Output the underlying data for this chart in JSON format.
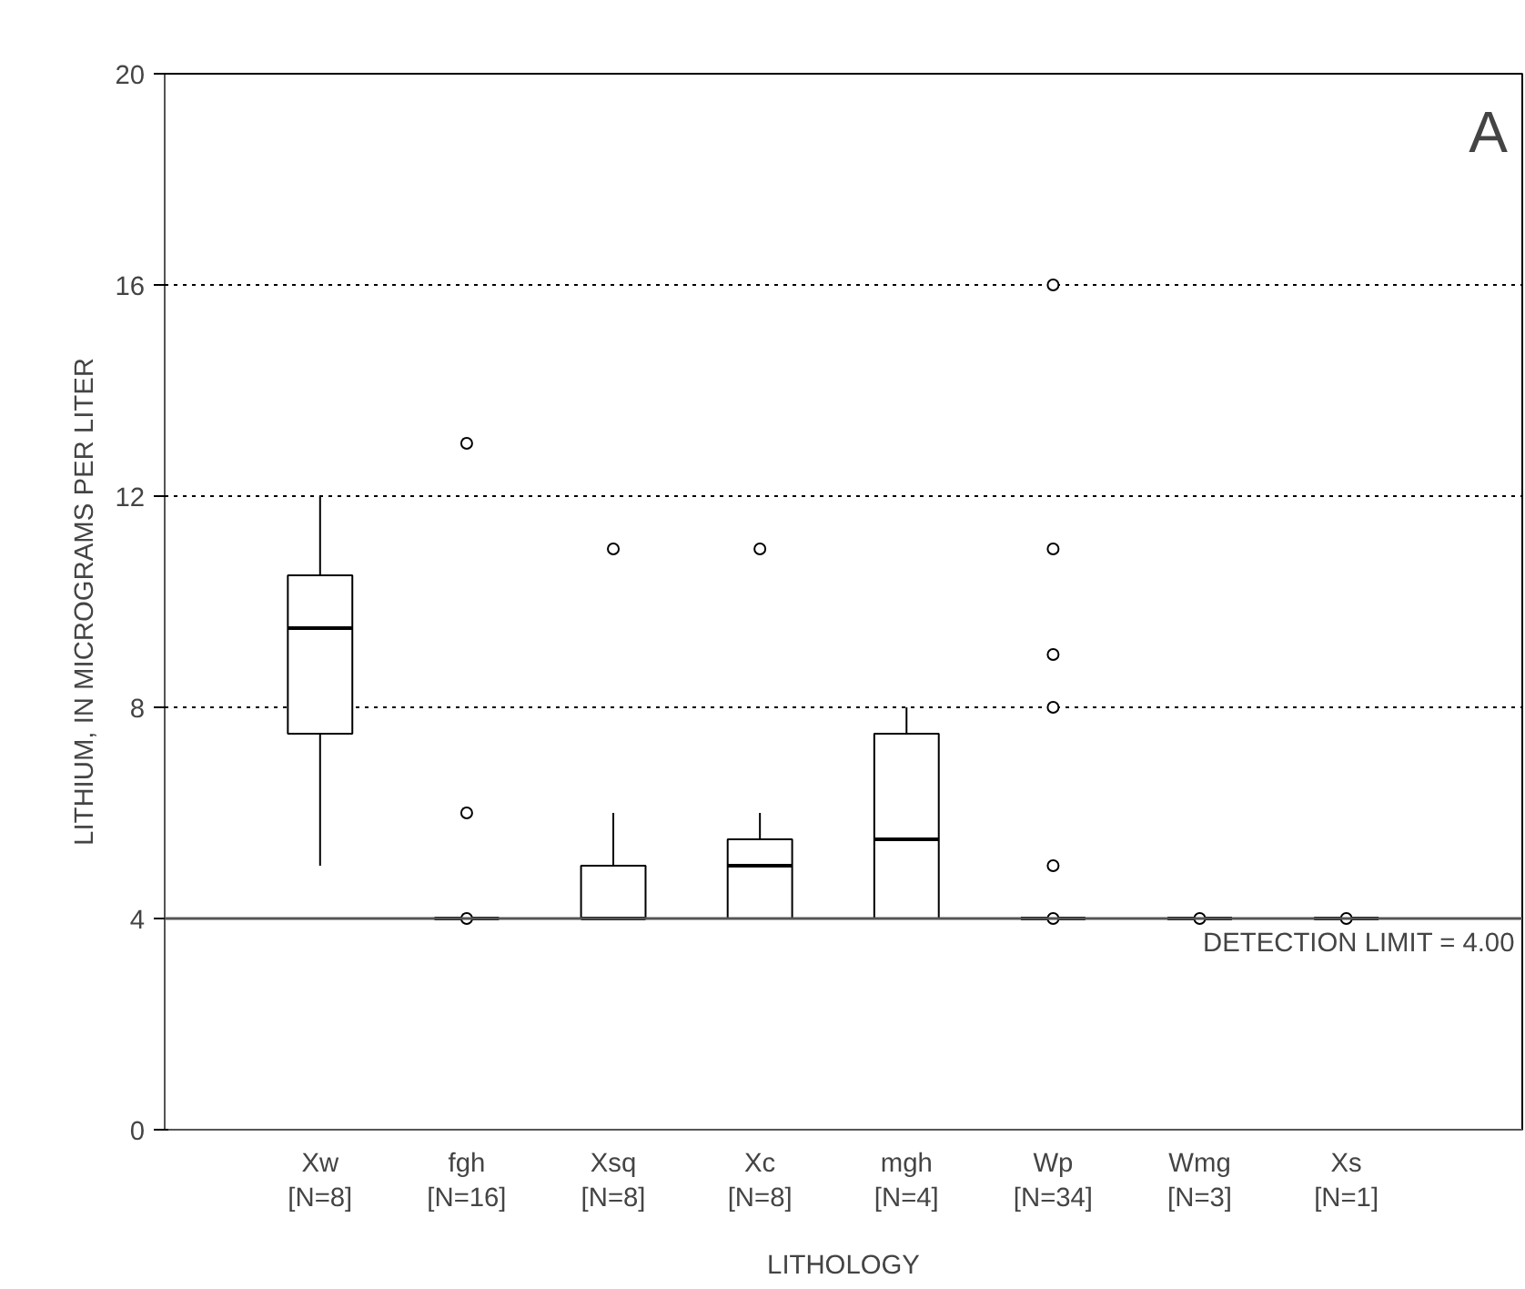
{
  "chart_data": {
    "type": "box",
    "xlabel": "LITHOLOGY",
    "ylabel": "LITHIUM, IN MICROGRAMS PER LITER",
    "categories": [
      "Xw\n[N=8]",
      "fgh\n[N=16]",
      "Xsq\n[N=8]",
      "Xc\n[N=8]",
      "mgh\n[N=4]",
      "Wp\n[N=34]",
      "Wmg\n[N=3]",
      "Xs\n[N=1]"
    ],
    "boxes": [
      {
        "low": 5,
        "q1": 7.5,
        "median": 9.5,
        "q3": 10.5,
        "high": 12
      },
      {
        "low": 4,
        "q1": 4,
        "median": 4,
        "q3": 4,
        "high": 4,
        "outliers": [
          4,
          6,
          13
        ]
      },
      {
        "low": 4,
        "q1": 4,
        "median": 4,
        "q3": 5,
        "high": 6,
        "outliers": [
          11
        ]
      },
      {
        "low": 4,
        "q1": 4,
        "median": 5,
        "q3": 5.5,
        "high": 6,
        "outliers": [
          11
        ]
      },
      {
        "low": 4,
        "q1": 4,
        "median": 5.5,
        "q3": 7.5,
        "high": 8
      },
      {
        "low": 4,
        "q1": 4,
        "median": 4,
        "q3": 4,
        "high": 4,
        "outliers": [
          4,
          5,
          8,
          9,
          11,
          16
        ]
      },
      {
        "low": 4,
        "q1": 4,
        "median": 4,
        "q3": 4,
        "high": 4,
        "outliers": [
          4
        ]
      },
      {
        "low": 4,
        "q1": 4,
        "median": 4,
        "q3": 4,
        "high": 4,
        "outliers": [
          4
        ]
      }
    ],
    "color": "#000000",
    "ylim": [
      0,
      20
    ],
    "yticks": [
      0,
      4,
      8,
      12,
      16,
      20
    ],
    "grid": "y",
    "ref_lines": [
      {
        "axis": "y",
        "value": 4,
        "label": "DETECTION LIMIT = 4.00"
      }
    ],
    "annotations": [
      "A"
    ]
  }
}
